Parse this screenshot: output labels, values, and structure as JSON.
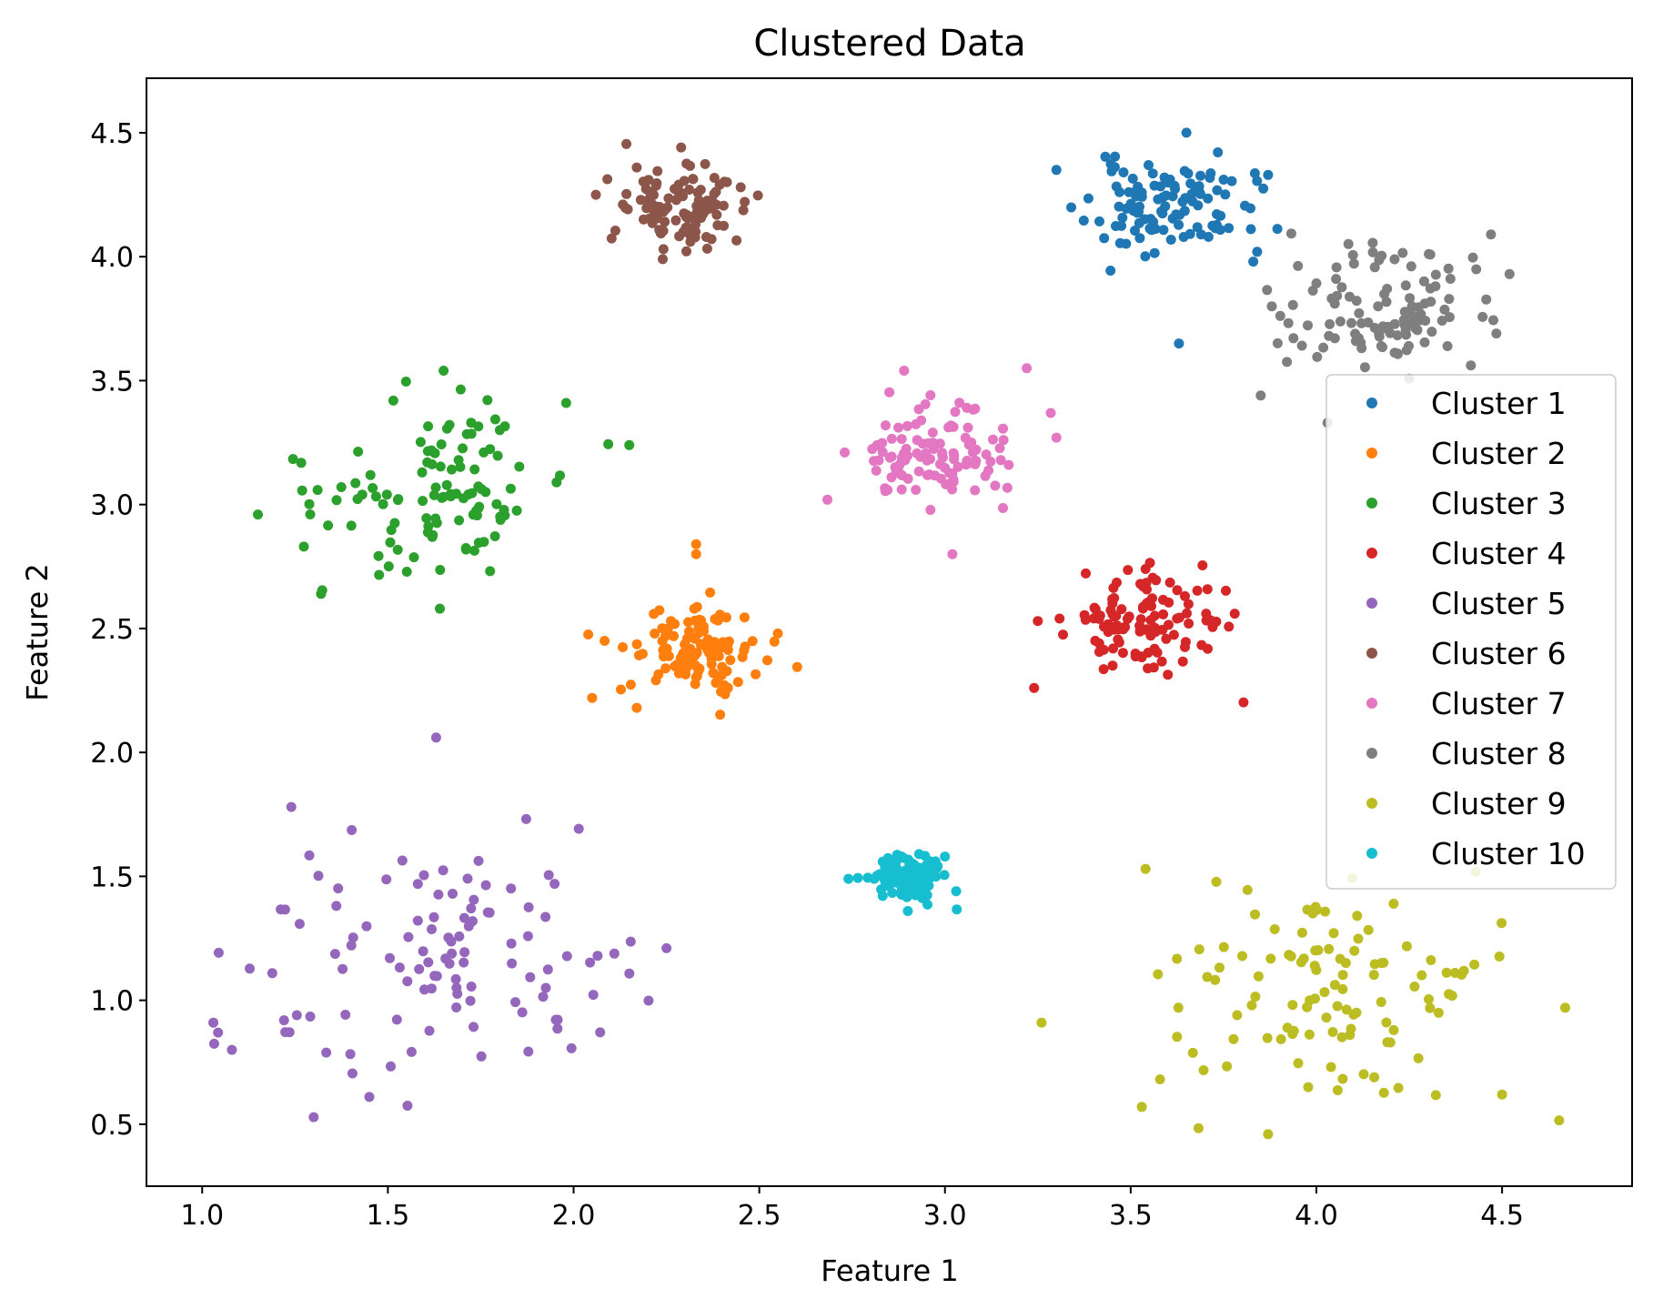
{
  "chart_data": {
    "type": "scatter",
    "title": "Clustered Data",
    "xlabel": "Feature 1",
    "ylabel": "Feature 2",
    "xlim": [
      0.85,
      4.85
    ],
    "ylim": [
      0.25,
      4.72
    ],
    "xticks": [
      1.0,
      1.5,
      2.0,
      2.5,
      3.0,
      3.5,
      4.0,
      4.5
    ],
    "yticks": [
      0.5,
      1.0,
      1.5,
      2.0,
      2.5,
      3.0,
      3.5,
      4.0,
      4.5
    ],
    "xtick_labels": [
      "1.0",
      "1.5",
      "2.0",
      "2.5",
      "3.0",
      "3.5",
      "4.0",
      "4.5"
    ],
    "ytick_labels": [
      "0.5",
      "1.0",
      "1.5",
      "2.0",
      "2.5",
      "3.0",
      "3.5",
      "4.0",
      "4.5"
    ],
    "grid": false,
    "legend_position": "center-right",
    "series": [
      {
        "name": "Cluster 1",
        "color": "#1f77b4",
        "center": [
          3.6,
          4.2
        ],
        "spread": [
          0.11,
          0.09
        ],
        "count": 110,
        "seed": 11,
        "extra": [
          [
            3.65,
            4.5
          ],
          [
            3.3,
            4.35
          ],
          [
            3.87,
            4.33
          ],
          [
            3.63,
            3.65
          ],
          [
            3.83,
            3.98
          ]
        ]
      },
      {
        "name": "Cluster 2",
        "color": "#ff7f0e",
        "center": [
          2.32,
          2.42
        ],
        "spread": [
          0.09,
          0.08
        ],
        "count": 110,
        "seed": 22,
        "extra": [
          [
            2.33,
            2.84
          ],
          [
            2.33,
            2.8
          ],
          [
            2.05,
            2.22
          ],
          [
            2.55,
            2.48
          ],
          [
            2.17,
            2.18
          ]
        ]
      },
      {
        "name": "Cluster 3",
        "color": "#2ca02c",
        "center": [
          1.62,
          3.05
        ],
        "spread": [
          0.17,
          0.17
        ],
        "count": 110,
        "seed": 33,
        "extra": [
          [
            1.65,
            3.54
          ],
          [
            1.15,
            2.96
          ],
          [
            2.15,
            3.24
          ],
          [
            1.32,
            2.64
          ],
          [
            1.98,
            3.41
          ],
          [
            1.64,
            2.58
          ]
        ]
      },
      {
        "name": "Cluster 4",
        "color": "#d62728",
        "center": [
          3.52,
          2.52
        ],
        "spread": [
          0.11,
          0.1
        ],
        "count": 110,
        "seed": 44,
        "extra": [
          [
            3.24,
            2.26
          ],
          [
            3.25,
            2.53
          ],
          [
            3.78,
            2.56
          ],
          [
            3.54,
            2.74
          ]
        ]
      },
      {
        "name": "Cluster 5",
        "color": "#9467bd",
        "center": [
          1.62,
          1.15
        ],
        "spread": [
          0.24,
          0.26
        ],
        "count": 110,
        "seed": 55,
        "extra": [
          [
            1.63,
            2.06
          ],
          [
            1.24,
            1.78
          ],
          [
            1.03,
            0.91
          ],
          [
            2.25,
            1.21
          ],
          [
            1.45,
            0.61
          ],
          [
            1.08,
            0.8
          ]
        ]
      },
      {
        "name": "Cluster 6",
        "color": "#8c564b",
        "center": [
          2.3,
          4.2
        ],
        "spread": [
          0.08,
          0.07
        ],
        "count": 110,
        "seed": 66,
        "extra": [
          [
            2.06,
            4.25
          ],
          [
            2.24,
            3.99
          ],
          [
            2.45,
            4.28
          ],
          [
            2.17,
            4.36
          ]
        ]
      },
      {
        "name": "Cluster 7",
        "color": "#e377c2",
        "center": [
          2.97,
          3.2
        ],
        "spread": [
          0.11,
          0.1
        ],
        "count": 110,
        "seed": 77,
        "extra": [
          [
            3.22,
            3.55
          ],
          [
            2.73,
            3.21
          ],
          [
            3.02,
            2.8
          ],
          [
            3.3,
            3.27
          ],
          [
            2.89,
            3.54
          ]
        ]
      },
      {
        "name": "Cluster 8",
        "color": "#7f7f7f",
        "center": [
          4.2,
          3.8
        ],
        "spread": [
          0.13,
          0.13
        ],
        "count": 110,
        "seed": 88,
        "extra": [
          [
            4.52,
            3.93
          ],
          [
            4.47,
            4.09
          ],
          [
            3.85,
            3.44
          ],
          [
            4.03,
            3.33
          ],
          [
            3.88,
            3.8
          ]
        ]
      },
      {
        "name": "Cluster 9",
        "color": "#bcbd22",
        "center": [
          4.05,
          1.0
        ],
        "spread": [
          0.25,
          0.22
        ],
        "count": 110,
        "seed": 99,
        "extra": [
          [
            4.67,
            0.97
          ],
          [
            3.26,
            0.91
          ],
          [
            3.87,
            0.46
          ],
          [
            4.5,
            0.62
          ],
          [
            3.54,
            1.53
          ],
          [
            3.53,
            0.57
          ]
        ]
      },
      {
        "name": "Cluster 10",
        "color": "#17becf",
        "center": [
          2.9,
          1.5
        ],
        "spread": [
          0.05,
          0.045
        ],
        "count": 110,
        "seed": 110,
        "extra": [
          [
            2.74,
            1.49
          ],
          [
            3.03,
            1.44
          ],
          [
            2.9,
            1.36
          ],
          [
            3.0,
            1.58
          ]
        ]
      }
    ]
  }
}
